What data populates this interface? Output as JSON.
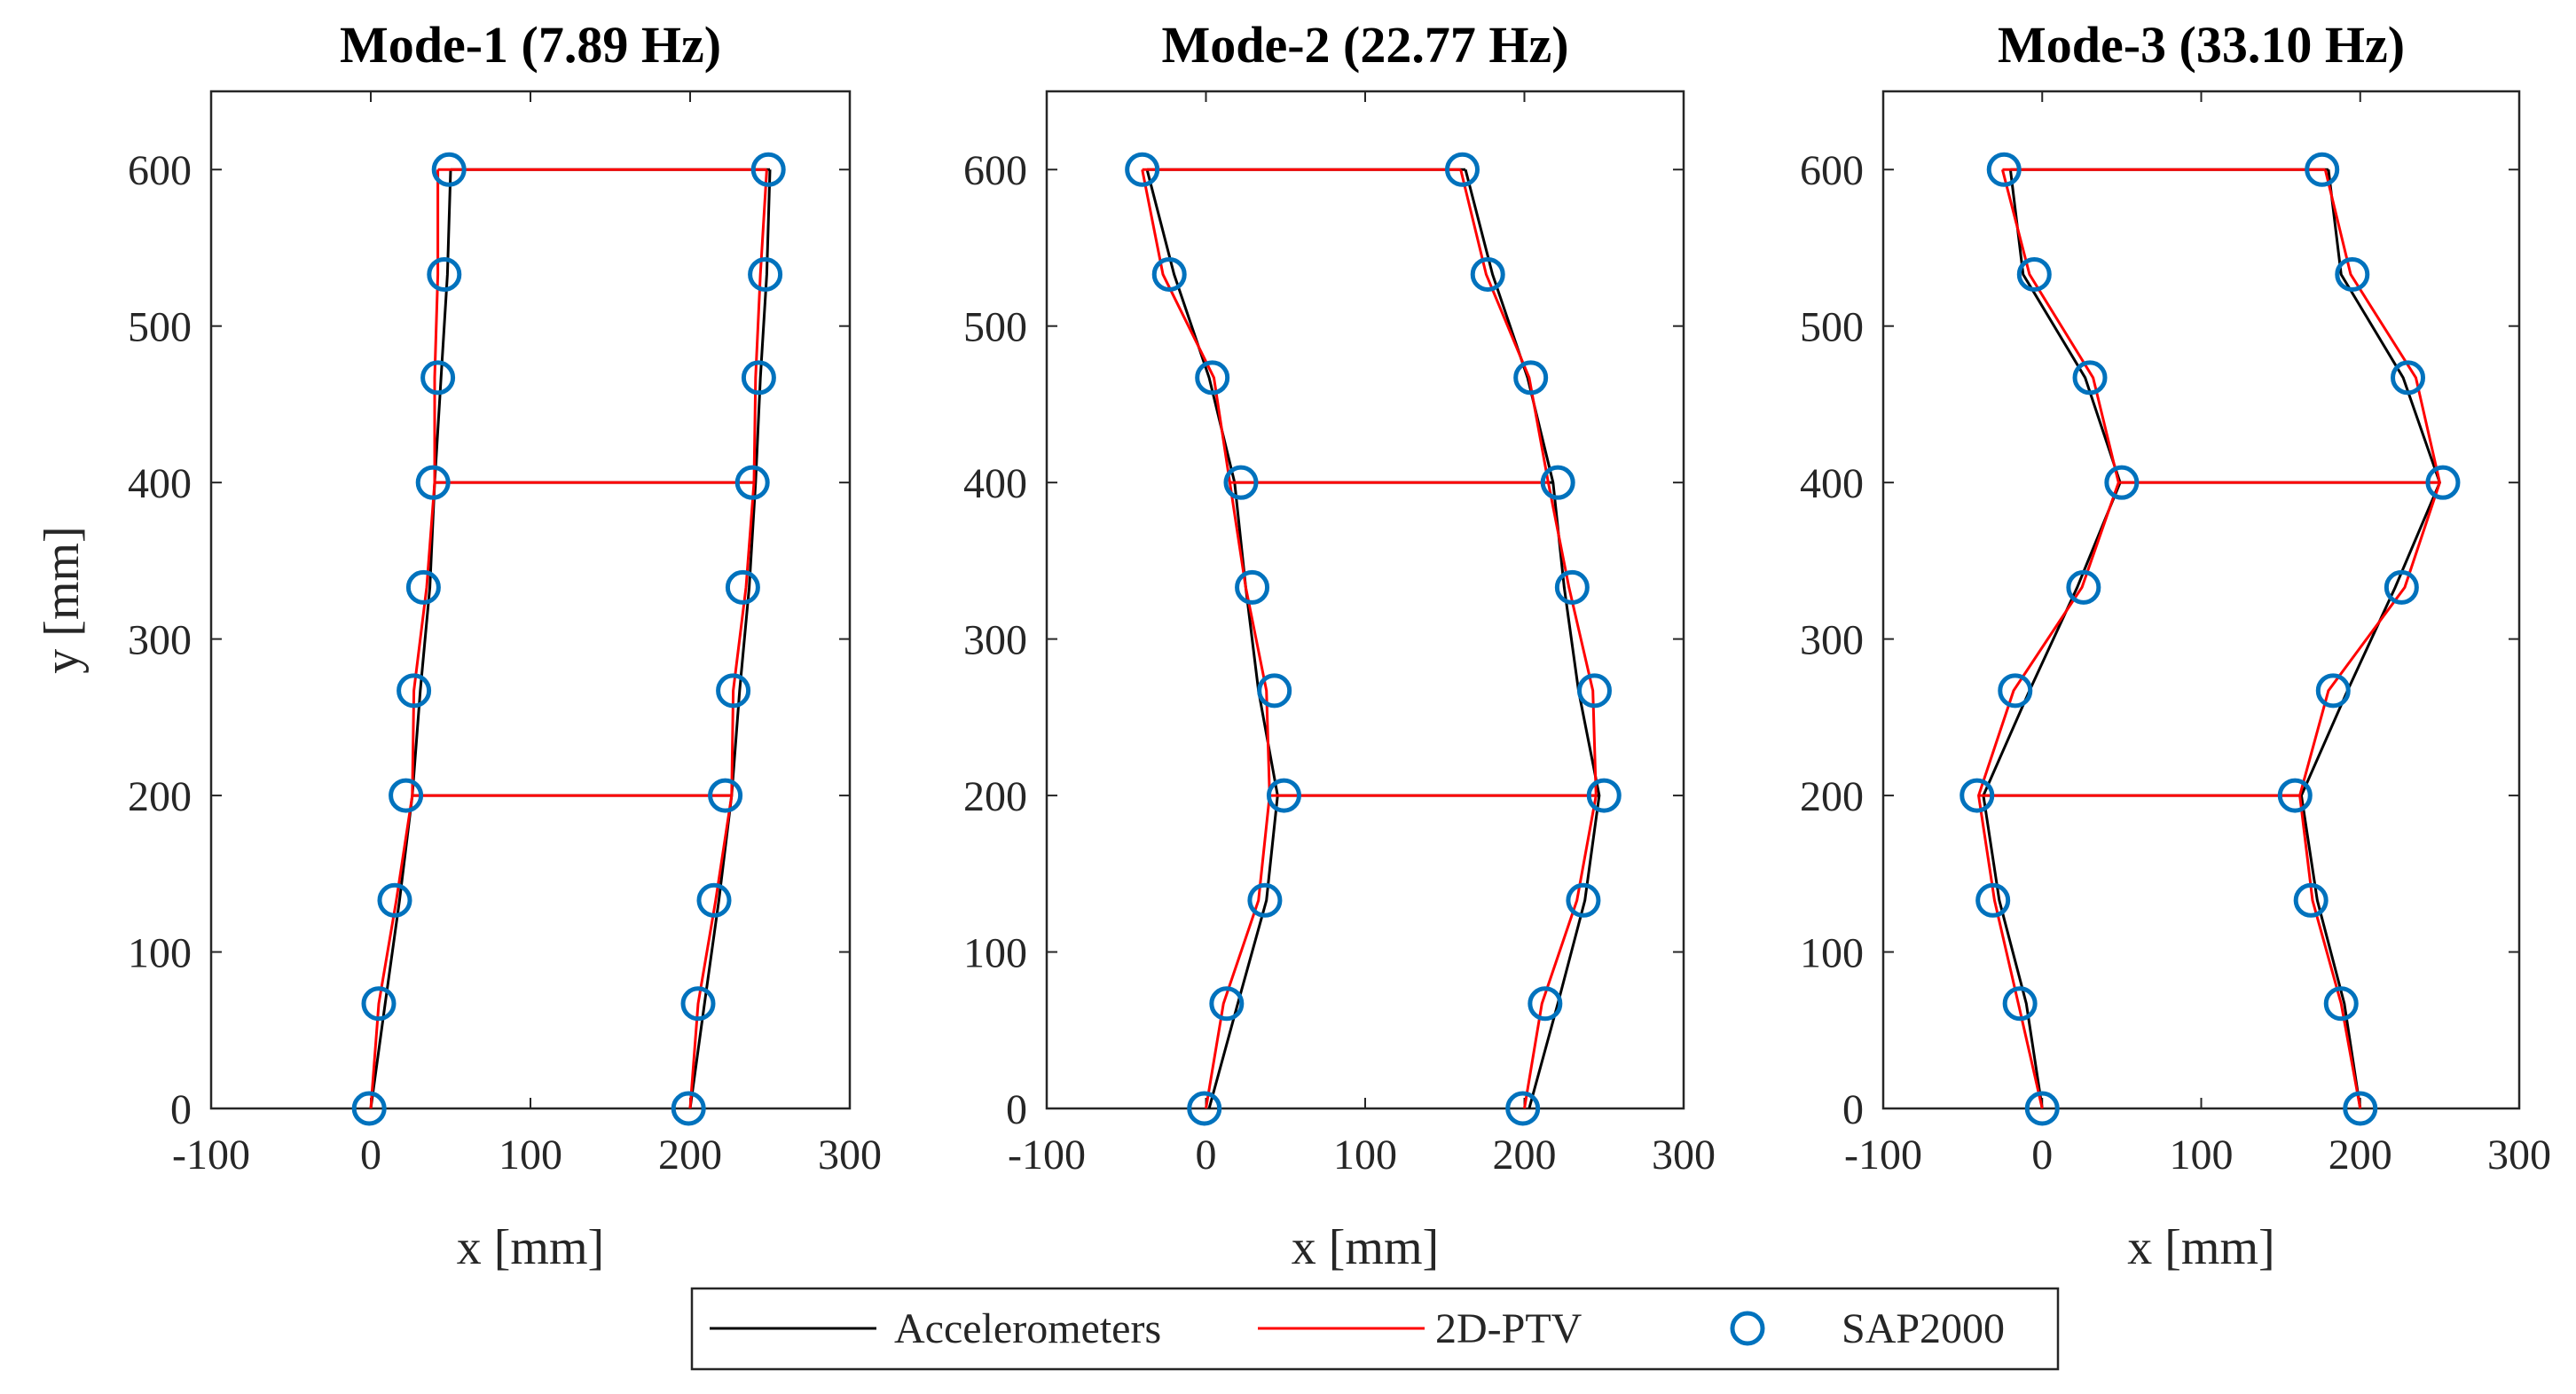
{
  "chart_data": [
    {
      "type": "line",
      "title": "Mode-1 (7.89 Hz)",
      "xlabel": "x [mm]",
      "ylabel": "y [mm]",
      "xlim": [
        -100,
        300
      ],
      "ylim": [
        0,
        650
      ],
      "xticks": [
        -100,
        0,
        100,
        200,
        300
      ],
      "xtick_labels": [
        "-100",
        "0",
        "100",
        "200",
        "300"
      ],
      "yticks": [
        0,
        100,
        200,
        300,
        400,
        500,
        600
      ],
      "ytick_labels": [
        "0",
        "100",
        "200",
        "300",
        "400",
        "500",
        "600"
      ],
      "node_y": [
        0,
        67,
        133,
        200,
        267,
        333,
        400,
        467,
        533,
        600
      ],
      "series": [
        {
          "name": "Accelerometers",
          "left_x": [
            0,
            9,
            18,
            26,
            31,
            37,
            40,
            44,
            48,
            50
          ],
          "right_x": [
            200,
            209,
            218,
            226,
            231,
            237,
            241,
            244,
            248,
            250
          ]
        },
        {
          "name": "2D-PTV",
          "left_x": [
            0,
            5,
            16,
            26,
            27,
            35,
            40,
            40,
            42,
            42
          ],
          "right_x": [
            200,
            205,
            216,
            226,
            227,
            235,
            240,
            241,
            244,
            248
          ]
        },
        {
          "name": "SAP2000",
          "left_x": [
            -1,
            5,
            15,
            22,
            27,
            33,
            39,
            42,
            46,
            49
          ],
          "right_x": [
            199,
            205,
            215,
            222,
            227,
            233,
            239,
            243,
            247,
            249
          ]
        }
      ]
    },
    {
      "type": "line",
      "title": "Mode-2 (22.77 Hz)",
      "xlabel": "x [mm]",
      "ylabel": "",
      "xlim": [
        -100,
        300
      ],
      "ylim": [
        0,
        650
      ],
      "xticks": [
        -100,
        0,
        100,
        200,
        300
      ],
      "xtick_labels": [
        "-100",
        "0",
        "100",
        "200",
        "300"
      ],
      "yticks": [
        0,
        100,
        200,
        300,
        400,
        500,
        600
      ],
      "ytick_labels": [
        "0",
        "100",
        "200",
        "300",
        "400",
        "500",
        "600"
      ],
      "node_y": [
        0,
        67,
        133,
        200,
        267,
        333,
        400,
        467,
        533,
        600
      ],
      "series": [
        {
          "name": "Accelerometers",
          "left_x": [
            2,
            20,
            38,
            45,
            33,
            25,
            18,
            2,
            -20,
            -37
          ],
          "right_x": [
            203,
            221,
            238,
            247,
            234,
            225,
            218,
            202,
            180,
            163
          ]
        },
        {
          "name": "2D-PTV",
          "left_x": [
            0,
            11,
            33,
            40,
            38,
            25,
            15,
            5,
            -27,
            -40
          ],
          "right_x": [
            200,
            211,
            233,
            245,
            243,
            228,
            215,
            203,
            176,
            160
          ]
        },
        {
          "name": "SAP2000",
          "left_x": [
            -1,
            13,
            37,
            49,
            43,
            29,
            22,
            4,
            -23,
            -40
          ],
          "right_x": [
            199,
            213,
            237,
            250,
            244,
            230,
            221,
            204,
            177,
            161
          ]
        }
      ]
    },
    {
      "type": "line",
      "title": "Mode-3 (33.10 Hz)",
      "xlabel": "x [mm]",
      "ylabel": "",
      "xlim": [
        -100,
        300
      ],
      "ylim": [
        0,
        650
      ],
      "xticks": [
        -100,
        0,
        100,
        200,
        300
      ],
      "xtick_labels": [
        "-100",
        "0",
        "100",
        "200",
        "300"
      ],
      "yticks": [
        0,
        100,
        200,
        300,
        400,
        500,
        600
      ],
      "ytick_labels": [
        "0",
        "100",
        "200",
        "300",
        "400",
        "500",
        "600"
      ],
      "node_y": [
        0,
        67,
        133,
        200,
        267,
        333,
        400,
        467,
        533,
        600
      ],
      "series": [
        {
          "name": "Accelerometers",
          "left_x": [
            0,
            -10,
            -27,
            -37,
            -8,
            22,
            49,
            27,
            -12,
            -20
          ],
          "right_x": [
            200,
            190,
            173,
            163,
            192,
            222,
            250,
            227,
            188,
            180
          ]
        },
        {
          "name": "2D-PTV",
          "left_x": [
            0,
            -15,
            -30,
            -40,
            -18,
            25,
            48,
            32,
            -8,
            -25
          ],
          "right_x": [
            200,
            188,
            170,
            162,
            180,
            228,
            250,
            235,
            194,
            178
          ]
        },
        {
          "name": "SAP2000",
          "left_x": [
            0,
            -14,
            -31,
            -41,
            -17,
            26,
            50,
            30,
            -5,
            -24
          ],
          "right_x": [
            200,
            188,
            169,
            159,
            183,
            226,
            252,
            230,
            195,
            176
          ]
        }
      ]
    }
  ],
  "legend": {
    "items": [
      {
        "label": "Accelerometers",
        "color": "#000000",
        "marker": "line"
      },
      {
        "label": "2D-PTV",
        "color": "#ff0000",
        "marker": "line"
      },
      {
        "label": "SAP2000",
        "color": "#0072bd",
        "marker": "circle"
      }
    ]
  }
}
